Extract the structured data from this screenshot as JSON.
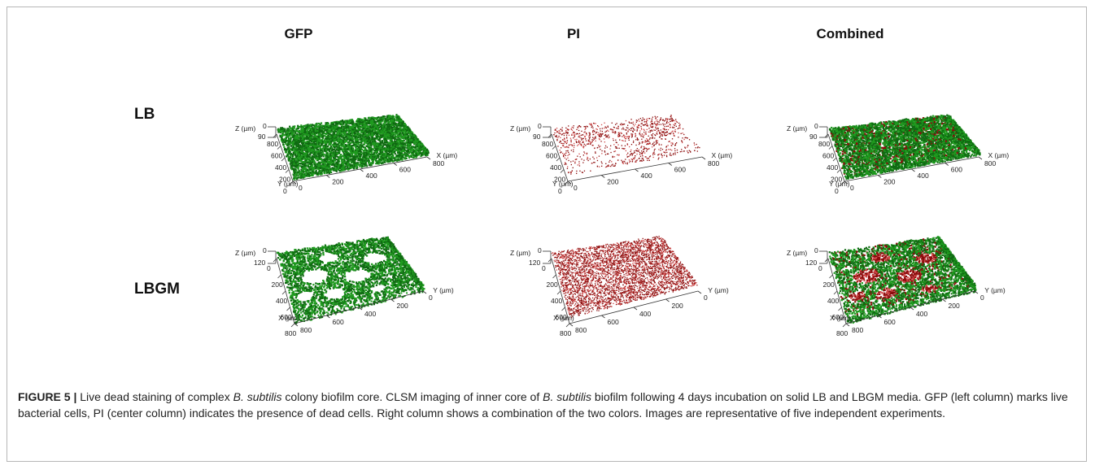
{
  "columns": [
    "GFP",
    "PI",
    "Combined"
  ],
  "rows": [
    "LB",
    "LBGM"
  ],
  "colors": {
    "gfp": "#1f9a1f",
    "gfp_dark": "#0f6a12",
    "pi": "#8c0c0c",
    "pi_light": "#d24848"
  },
  "panels": [
    {
      "id": "lb-gfp",
      "row": "LB",
      "col": "GFP",
      "axes": {
        "z_label": "Z (µm)",
        "z_ticks": [
          "0",
          "90"
        ],
        "y_label": "Y (µm)",
        "y_ticks": [
          "800",
          "600",
          "400",
          "200",
          "0"
        ],
        "x_label": "X (µm)",
        "x_ticks": [
          "0",
          "200",
          "400",
          "600",
          "800"
        ]
      }
    },
    {
      "id": "lb-pi",
      "row": "LB",
      "col": "PI",
      "axes": {
        "z_label": "Z (µm)",
        "z_ticks": [
          "0",
          "90"
        ],
        "y_label": "Y (µm)",
        "y_ticks": [
          "800",
          "600",
          "400",
          "200",
          "0"
        ],
        "x_label": "X (µm)",
        "x_ticks": [
          "0",
          "200",
          "400",
          "600",
          "800"
        ]
      }
    },
    {
      "id": "lb-combined",
      "row": "LB",
      "col": "Combined",
      "axes": {
        "z_label": "Z (µm)",
        "z_ticks": [
          "0",
          "90"
        ],
        "y_label": "Y (µm)",
        "y_ticks": [
          "800",
          "600",
          "400",
          "200",
          "0"
        ],
        "x_label": "X (µm)",
        "x_ticks": [
          "0",
          "200",
          "400",
          "600",
          "800"
        ]
      }
    },
    {
      "id": "lbgm-gfp",
      "row": "LBGM",
      "col": "GFP",
      "axes": {
        "z_label": "Z (µm)",
        "z_ticks": [
          "0",
          "120"
        ],
        "y_label": "X (µm)",
        "y_ticks": [
          "0",
          "200",
          "400",
          "600",
          "800"
        ],
        "x_label": "Y (µm)",
        "x_ticks": [
          "800",
          "600",
          "400",
          "200",
          "0"
        ]
      }
    },
    {
      "id": "lbgm-pi",
      "row": "LBGM",
      "col": "PI",
      "axes": {
        "z_label": "Z (µm)",
        "z_ticks": [
          "0",
          "120"
        ],
        "y_label": "X (µm)",
        "y_ticks": [
          "0",
          "200",
          "400",
          "600",
          "800"
        ],
        "x_label": "Y (µm)",
        "x_ticks": [
          "800",
          "600",
          "400",
          "200",
          "0"
        ]
      }
    },
    {
      "id": "lbgm-combined",
      "row": "LBGM",
      "col": "Combined",
      "axes": {
        "z_label": "Z (µm)",
        "z_ticks": [
          "0",
          "120"
        ],
        "y_label": "X (µm)",
        "y_ticks": [
          "0",
          "200",
          "400",
          "600",
          "800"
        ],
        "x_label": "Y (µm)",
        "x_ticks": [
          "800",
          "600",
          "400",
          "200",
          "0"
        ]
      }
    }
  ],
  "caption": {
    "figure_number": "FIGURE 5 |",
    "part1": " Live dead staining of complex ",
    "species1": "B. subtilis",
    "part2": " colony biofilm core. CLSM imaging of inner core of ",
    "species2": "B. subtilis",
    "part3": " biofilm following 4 days incubation on solid LB and LBGM media. GFP (left column) marks live bacterial cells, PI (center column) indicates the presence of dead cells. Right column shows a combination of the two colors. Images are representative of five independent experiments."
  }
}
